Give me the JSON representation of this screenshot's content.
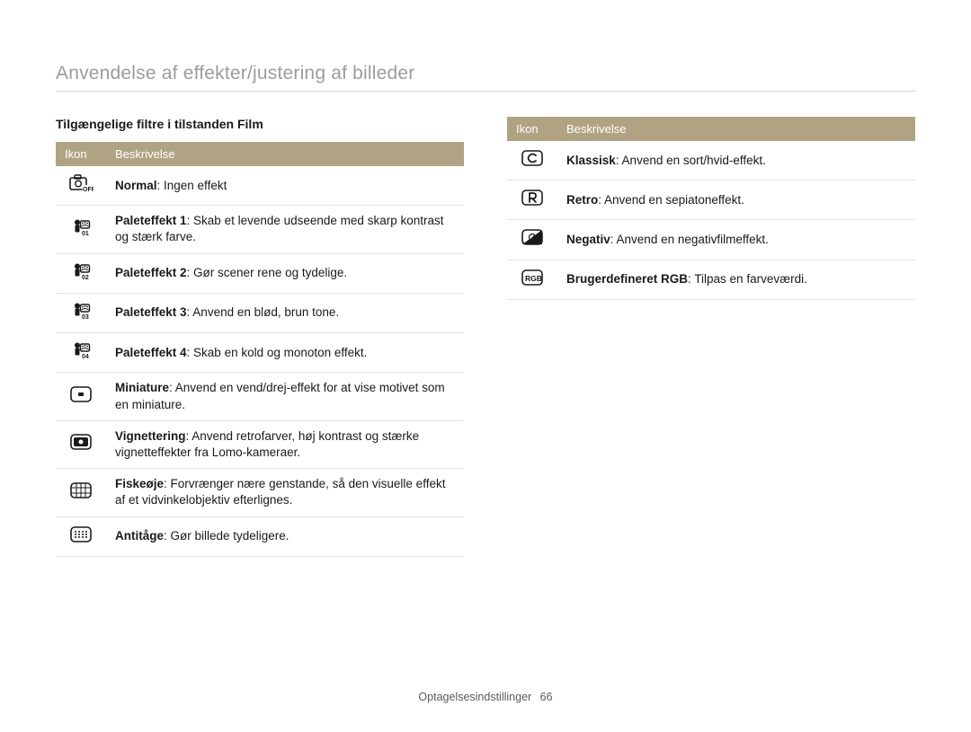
{
  "header": {
    "title": "Anvendelse af effekter/justering af billeder"
  },
  "colors": {
    "header_band": "#b0a383",
    "header_text": "#ffffff",
    "rule": "#e2e2e2",
    "title_gray": "#9c9c9c"
  },
  "left": {
    "subheading": "Tilgængelige filtre i tilstanden Film",
    "table": {
      "col_icon": "Ikon",
      "col_desc": "Beskrivelse",
      "rows": [
        {
          "icon": "normal",
          "bold": "Normal",
          "rest": ": Ingen effekt"
        },
        {
          "icon": "pal1",
          "bold": "Paleteffekt 1",
          "rest": ": Skab et levende udseende med skarp kontrast og stærk farve."
        },
        {
          "icon": "pal2",
          "bold": "Paleteffekt 2",
          "rest": ": Gør scener rene og tydelige."
        },
        {
          "icon": "pal3",
          "bold": "Paleteffekt 3",
          "rest": ": Anvend en blød, brun tone."
        },
        {
          "icon": "pal4",
          "bold": "Paleteffekt 4",
          "rest": ": Skab en kold og monoton effekt."
        },
        {
          "icon": "mini",
          "bold": "Miniature",
          "rest": ": Anvend en vend/drej-effekt for at vise motivet som en miniature."
        },
        {
          "icon": "vign",
          "bold": "Vignettering",
          "rest": ": Anvend retrofarver, høj kontrast og stærke vignetteffekter fra Lomo-kameraer."
        },
        {
          "icon": "fish",
          "bold": "Fiskeøje",
          "rest": ": Forvrænger nære genstande, så den visuelle effekt af et vidvinkelobjektiv efterlignes."
        },
        {
          "icon": "defog",
          "bold": "Antitåge",
          "rest": ": Gør billede tydeligere."
        }
      ]
    }
  },
  "right": {
    "table": {
      "col_icon": "Ikon",
      "col_desc": "Beskrivelse",
      "rows": [
        {
          "icon": "classic",
          "bold": "Klassisk",
          "rest": ": Anvend en sort/hvid-effekt."
        },
        {
          "icon": "retro",
          "bold": "Retro",
          "rest": ": Anvend en sepiatoneffekt."
        },
        {
          "icon": "neg",
          "bold": "Negativ",
          "rest": ": Anvend en negativfilmeffekt."
        },
        {
          "icon": "rgb",
          "bold": "Brugerdefineret RGB",
          "rest": ": Tilpas en farveværdi."
        }
      ]
    }
  },
  "footer": {
    "section": "Optagelsesindstillinger",
    "page": "66"
  }
}
